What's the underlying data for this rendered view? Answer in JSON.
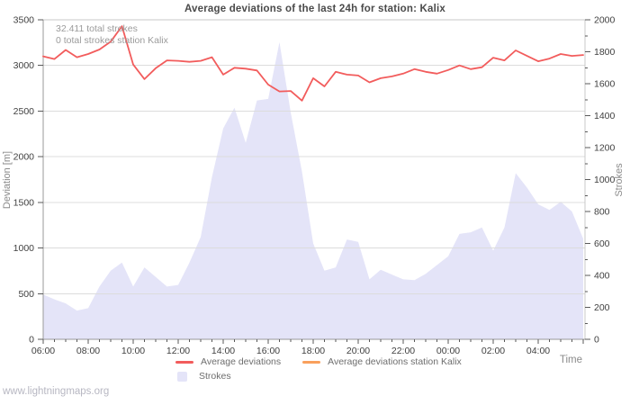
{
  "page": {
    "watermark": "www.lightningmaps.org"
  },
  "chart_data": {
    "type": "line+area",
    "title": "Average deviations of the last 24h for station: Kalix",
    "annotations": [
      "32.411 total strokes",
      "0 total strokes station Kalix"
    ],
    "x": [
      "06:00",
      "06:30",
      "07:00",
      "07:30",
      "08:00",
      "08:30",
      "09:00",
      "09:30",
      "10:00",
      "10:30",
      "11:00",
      "11:30",
      "12:00",
      "12:30",
      "13:00",
      "13:30",
      "14:00",
      "14:30",
      "15:00",
      "15:30",
      "16:00",
      "16:30",
      "17:00",
      "17:30",
      "18:00",
      "18:30",
      "19:00",
      "19:30",
      "20:00",
      "20:30",
      "21:00",
      "21:30",
      "22:00",
      "22:30",
      "23:00",
      "23:30",
      "00:00",
      "00:30",
      "01:00",
      "01:30",
      "02:00",
      "02:30",
      "03:00",
      "03:30",
      "04:00",
      "04:30",
      "05:00",
      "05:30",
      "06:00"
    ],
    "series": [
      {
        "name": "Average deviations",
        "type": "line",
        "yaxis": "left",
        "color": "#f25c5c",
        "values": [
          3100,
          3070,
          3170,
          3090,
          3125,
          3175,
          3260,
          3430,
          3010,
          2850,
          2970,
          3055,
          3050,
          3040,
          3050,
          3090,
          2900,
          2975,
          2965,
          2945,
          2790,
          2715,
          2720,
          2615,
          2860,
          2770,
          2930,
          2900,
          2890,
          2815,
          2860,
          2880,
          2910,
          2960,
          2930,
          2910,
          2950,
          3000,
          2960,
          2980,
          3085,
          3055,
          3165,
          3105,
          3045,
          3075,
          3125,
          3105,
          3115
        ]
      },
      {
        "name": "Average deviations station Kalix",
        "type": "line",
        "yaxis": "left",
        "color": "#f9a05c",
        "values": []
      },
      {
        "name": "Strokes",
        "type": "area",
        "yaxis": "right",
        "color": "#e4e4f8",
        "values": [
          280,
          250,
          225,
          180,
          195,
          330,
          430,
          480,
          330,
          450,
          390,
          330,
          340,
          480,
          640,
          1015,
          1320,
          1450,
          1230,
          1495,
          1505,
          1860,
          1420,
          1050,
          600,
          430,
          450,
          625,
          610,
          375,
          435,
          405,
          375,
          370,
          410,
          465,
          520,
          660,
          670,
          700,
          555,
          700,
          1040,
          950,
          845,
          810,
          860,
          800,
          630
        ]
      }
    ],
    "legend": [
      {
        "label": "Average deviations",
        "swatch": "line",
        "color": "#f25c5c"
      },
      {
        "label": "Average deviations station Kalix",
        "swatch": "line",
        "color": "#f9a05c"
      },
      {
        "label": "Strokes",
        "swatch": "box",
        "color": "#e4e4f8"
      }
    ],
    "left_axis": {
      "label": "Deviation  [m]",
      "min": 0,
      "max": 3500,
      "tick_interval": 500,
      "ticks": [
        0,
        500,
        1000,
        1500,
        2000,
        2500,
        3000,
        3500
      ]
    },
    "right_axis": {
      "label": "Strokes",
      "min": 0,
      "max": 2000,
      "tick_interval": 200,
      "minor_tick_interval": 100,
      "ticks": [
        0,
        200,
        400,
        600,
        800,
        1000,
        1200,
        1400,
        1600,
        1800,
        2000
      ]
    },
    "x_axis": {
      "label": "Time",
      "minor_interval_minutes": 30,
      "major_tick_labels": [
        "06:00",
        "08:00",
        "10:00",
        "12:00",
        "14:00",
        "16:00",
        "18:00",
        "20:00",
        "22:00",
        "00:00",
        "02:00",
        "04:00"
      ]
    },
    "grid": {
      "on": true,
      "color": "#dcdcdc"
    },
    "colors": {
      "frame": "#c8c8c8",
      "axis_line": "#9a9a9a",
      "tick": "#5a5a5a",
      "tick_label": "#3f3f3f",
      "background": "#ffffff"
    }
  }
}
